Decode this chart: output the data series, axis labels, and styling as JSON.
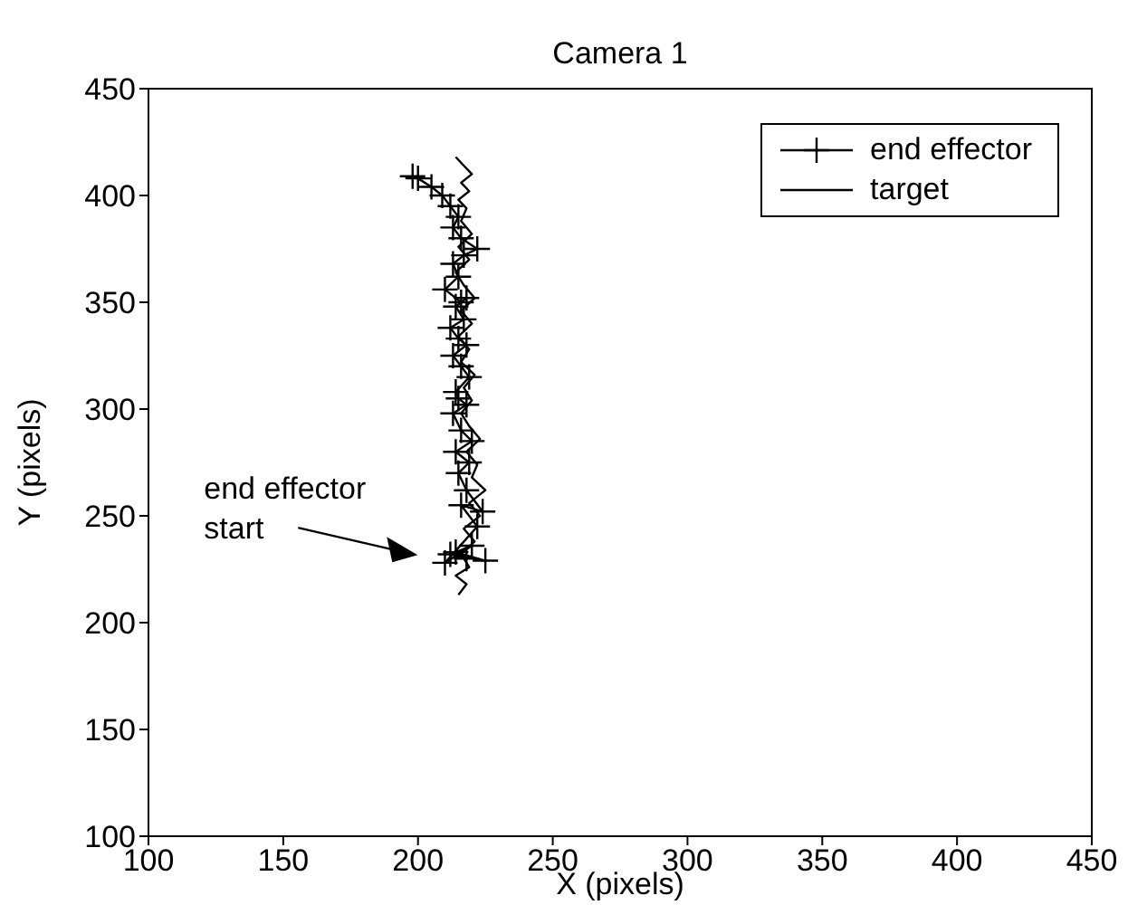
{
  "chart_data": {
    "type": "line",
    "title": "Camera 1",
    "xlabel": "X (pixels)",
    "ylabel": "Y (pixels)",
    "xlim": [
      100,
      450
    ],
    "xticks": [
      100,
      150,
      200,
      250,
      300,
      350,
      400,
      450
    ],
    "ylim": [
      100,
      450
    ],
    "yticks": [
      100,
      150,
      200,
      250,
      300,
      350,
      400,
      450
    ],
    "legend": "top right",
    "annotations": [
      "end effector\nstart"
    ],
    "series": [
      {
        "name": "end effector",
        "color": "#000000",
        "marker": "cross",
        "line_style": "solid",
        "x": [
          218,
          212,
          225,
          214,
          220,
          210,
          222,
          216,
          224,
          218,
          215,
          219,
          214,
          220,
          216,
          213,
          218,
          215,
          214,
          219,
          216,
          213,
          218,
          215,
          212,
          217,
          214,
          218,
          216,
          210,
          215,
          213,
          217,
          222,
          216,
          213,
          215,
          212,
          209,
          205,
          200,
          198
        ],
        "values": [
          230,
          232,
          229,
          233,
          236,
          228,
          245,
          255,
          252,
          262,
          270,
          275,
          280,
          285,
          290,
          298,
          302,
          305,
          308,
          315,
          320,
          325,
          330,
          333,
          338,
          342,
          348,
          352,
          350,
          356,
          362,
          368,
          372,
          375,
          380,
          385,
          390,
          395,
          400,
          404,
          408,
          409
        ]
      },
      {
        "name": "target",
        "color": "#000000",
        "marker": "none",
        "line_style": "solid",
        "x": [
          215,
          218,
          214,
          219,
          216,
          221,
          217,
          223,
          219,
          225,
          220,
          222,
          218,
          223,
          219,
          216,
          220,
          217,
          221,
          216,
          219,
          215,
          220,
          216,
          221,
          217,
          214,
          219,
          215,
          220,
          216,
          218,
          215,
          219,
          216,
          220,
          217,
          214
        ],
        "values": [
          213,
          218,
          222,
          226,
          232,
          238,
          244,
          250,
          256,
          262,
          268,
          274,
          280,
          286,
          292,
          298,
          304,
          310,
          316,
          322,
          328,
          334,
          340,
          346,
          352,
          358,
          364,
          370,
          376,
          382,
          388,
          394,
          398,
          402,
          406,
          410,
          414,
          418
        ]
      }
    ]
  }
}
